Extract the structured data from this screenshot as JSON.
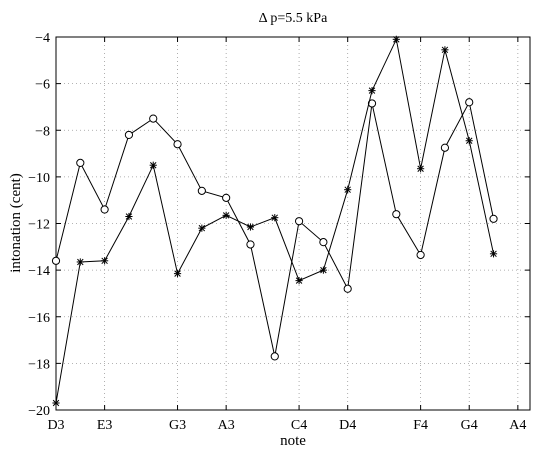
{
  "chart_data": {
    "type": "line",
    "title": "Δ p=5.5 kPa",
    "xlabel": "note",
    "ylabel": "intonation (cent)",
    "ylim": [
      -20,
      -4
    ],
    "yticks": [
      -20,
      -18,
      -16,
      -14,
      -12,
      -10,
      -8,
      -6,
      -4
    ],
    "xlim": [
      0,
      19.5
    ],
    "xticks": [
      {
        "x": 0,
        "label": "D3"
      },
      {
        "x": 2,
        "label": "E3"
      },
      {
        "x": 5,
        "label": "G3"
      },
      {
        "x": 7,
        "label": "A3"
      },
      {
        "x": 10,
        "label": "C4"
      },
      {
        "x": 12,
        "label": "D4"
      },
      {
        "x": 15,
        "label": "F4"
      },
      {
        "x": 17,
        "label": "G4"
      },
      {
        "x": 19,
        "label": "A4"
      }
    ],
    "grid": true,
    "series": [
      {
        "marker": "circle",
        "color": "#000000",
        "points": [
          [
            0,
            -13.6
          ],
          [
            1,
            -9.4
          ],
          [
            2,
            -11.4
          ],
          [
            3,
            -8.2
          ],
          [
            4,
            -7.5
          ],
          [
            5,
            -8.6
          ],
          [
            6,
            -10.6
          ],
          [
            7,
            -10.9
          ],
          [
            8,
            -12.9
          ],
          [
            9,
            -17.7
          ],
          [
            10,
            -11.9
          ],
          [
            11,
            -12.8
          ],
          [
            12,
            -14.8
          ],
          [
            13,
            -6.85
          ],
          [
            14,
            -11.6
          ],
          [
            15,
            -13.35
          ],
          [
            16,
            -8.75
          ],
          [
            17,
            -6.8
          ],
          [
            18,
            -11.8
          ]
        ]
      },
      {
        "marker": "asterisk",
        "color": "#000000",
        "points": [
          [
            0,
            -19.7
          ],
          [
            1,
            -13.65
          ],
          [
            2,
            -13.6
          ],
          [
            3,
            -11.7
          ],
          [
            4,
            -9.5
          ],
          [
            5,
            -14.15
          ],
          [
            6,
            -12.2
          ],
          [
            7,
            -11.65
          ],
          [
            8,
            -12.15
          ],
          [
            9,
            -11.75
          ],
          [
            10,
            -14.45
          ],
          [
            11,
            -14.0
          ],
          [
            12,
            -10.55
          ],
          [
            13,
            -6.3
          ],
          [
            14,
            -4.1
          ],
          [
            15,
            -9.65
          ],
          [
            16,
            -4.55
          ],
          [
            17,
            -8.45
          ],
          [
            18,
            -13.3
          ]
        ]
      }
    ]
  }
}
